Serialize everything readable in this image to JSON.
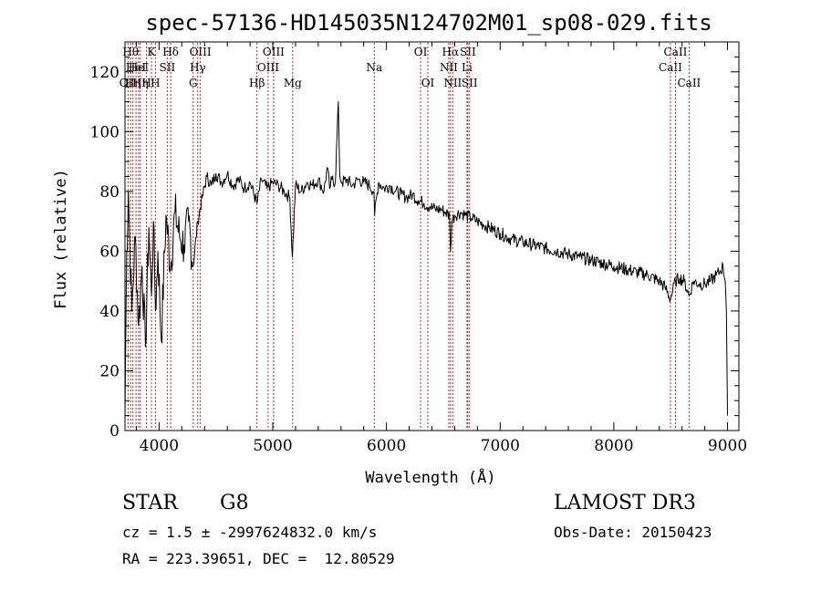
{
  "chart_data": {
    "type": "line",
    "title": "spec-57136-HD145035N124702M01_sp08-029.fits",
    "xlabel": "Wavelength (Å)",
    "ylabel": "Flux (relative)",
    "xlim": [
      3700,
      9100
    ],
    "ylim": [
      0,
      130
    ],
    "xticks": [
      4000,
      5000,
      6000,
      7000,
      8000,
      9000
    ],
    "yticks": [
      0,
      20,
      40,
      60,
      80,
      100,
      120
    ],
    "xtick_labels": [
      "4000",
      "5000",
      "6000",
      "7000",
      "8000",
      "9000"
    ],
    "ytick_labels": [
      "0",
      "20",
      "40",
      "60",
      "80",
      "100",
      "120"
    ],
    "grid": false,
    "line_color": "#000000",
    "marker_color": "#cc2222",
    "series": [
      {
        "name": "spectrum",
        "x": [
          3700,
          3715,
          3730,
          3760,
          3790,
          3820,
          3850,
          3880,
          3910,
          3933,
          3950,
          3968,
          3990,
          4020,
          4060,
          4101,
          4140,
          4180,
          4220,
          4260,
          4300,
          4340,
          4380,
          4420,
          4460,
          4500,
          4550,
          4600,
          4650,
          4700,
          4750,
          4800,
          4861,
          4900,
          4950,
          5000,
          5050,
          5100,
          5150,
          5172,
          5200,
          5250,
          5300,
          5350,
          5400,
          5450,
          5480,
          5500,
          5520,
          5550,
          5577,
          5590,
          5610,
          5650,
          5700,
          5750,
          5800,
          5850,
          5890,
          5896,
          5930,
          5980,
          6030,
          6080,
          6130,
          6180,
          6230,
          6280,
          6330,
          6380,
          6430,
          6480,
          6520,
          6555,
          6563,
          6575,
          6600,
          6650,
          6700,
          6750,
          6800,
          6850,
          6900,
          7000,
          7100,
          7200,
          7300,
          7400,
          7500,
          7600,
          7700,
          7800,
          7900,
          8000,
          8100,
          8200,
          8300,
          8400,
          8450,
          8498,
          8542,
          8580,
          8620,
          8662,
          8700,
          8750,
          8800,
          8850,
          8900,
          8930,
          8960,
          8980,
          8990,
          9000
        ],
        "y": [
          5,
          60,
          80,
          40,
          65,
          35,
          55,
          28,
          68,
          45,
          70,
          40,
          60,
          30,
          72,
          55,
          73,
          65,
          62,
          70,
          55,
          70,
          78,
          85,
          82,
          86,
          83,
          86,
          82,
          84,
          81,
          83,
          76,
          84,
          81,
          83,
          82,
          80,
          78,
          58,
          82,
          80,
          83,
          82,
          84,
          80,
          88,
          81,
          84,
          83,
          110,
          85,
          83,
          84,
          82,
          84,
          83,
          82,
          80,
          72,
          83,
          81,
          82,
          80,
          79,
          78,
          79,
          77,
          76,
          75,
          74,
          74,
          73,
          72,
          60,
          70,
          72,
          73,
          72,
          71,
          70,
          69,
          68,
          66,
          64,
          63,
          62,
          61,
          60,
          59,
          58,
          57,
          56,
          55,
          54,
          53,
          52,
          50,
          48,
          44,
          50,
          51,
          50,
          45,
          50,
          49,
          49,
          50,
          52,
          53,
          55,
          50,
          40,
          5
        ]
      }
    ],
    "lines": [
      {
        "wave": 3727,
        "label": "OII",
        "row": 3
      },
      {
        "wave": 3750,
        "label": "Hθ",
        "row": 1
      },
      {
        "wave": 3770,
        "label": "Hη",
        "row": 3
      },
      {
        "wave": 3797,
        "label": "HeI",
        "row": 2
      },
      {
        "wave": 3820,
        "label": "HeI",
        "row": 2
      },
      {
        "wave": 3835,
        "label": "Hη",
        "row": 3
      },
      {
        "wave": 3889,
        "label": "H",
        "row": 3
      },
      {
        "wave": 3933,
        "label": "K",
        "row": 1
      },
      {
        "wave": 3968,
        "label": "H",
        "row": 3
      },
      {
        "wave": 4072,
        "label": "SII",
        "row": 2
      },
      {
        "wave": 4102,
        "label": "Hδ",
        "row": 1
      },
      {
        "wave": 4300,
        "label": "G",
        "row": 3
      },
      {
        "wave": 4340,
        "label": "Hγ",
        "row": 2
      },
      {
        "wave": 4363,
        "label": "OIII",
        "row": 1
      },
      {
        "wave": 4861,
        "label": "Hβ",
        "row": 3
      },
      {
        "wave": 4959,
        "label": "OIII",
        "row": 2
      },
      {
        "wave": 5007,
        "label": "OIII",
        "row": 1
      },
      {
        "wave": 5175,
        "label": "Mg",
        "row": 3
      },
      {
        "wave": 5893,
        "label": "Na",
        "row": 2
      },
      {
        "wave": 6300,
        "label": "OI",
        "row": 1
      },
      {
        "wave": 6364,
        "label": "OI",
        "row": 3
      },
      {
        "wave": 6548,
        "label": "NII",
        "row": 2
      },
      {
        "wave": 6563,
        "label": "Hα",
        "row": 1
      },
      {
        "wave": 6583,
        "label": "NII",
        "row": 3
      },
      {
        "wave": 6708,
        "label": "Li",
        "row": 2
      },
      {
        "wave": 6716,
        "label": "SII",
        "row": 1
      },
      {
        "wave": 6731,
        "label": "SII",
        "row": 3
      },
      {
        "wave": 8498,
        "label": "CaII",
        "row": 2
      },
      {
        "wave": 8542,
        "label": "CaII",
        "row": 1
      },
      {
        "wave": 8662,
        "label": "CaII",
        "row": 3
      }
    ]
  },
  "info": {
    "object_type": "STAR",
    "subclass": "G8",
    "survey": "LAMOST DR3",
    "cz_line": "cz = 1.5 ± -2997624832.0 km/s",
    "obs_date": "Obs-Date: 20150423",
    "coords_line": "RA = 223.39651, DEC =  12.80529"
  }
}
